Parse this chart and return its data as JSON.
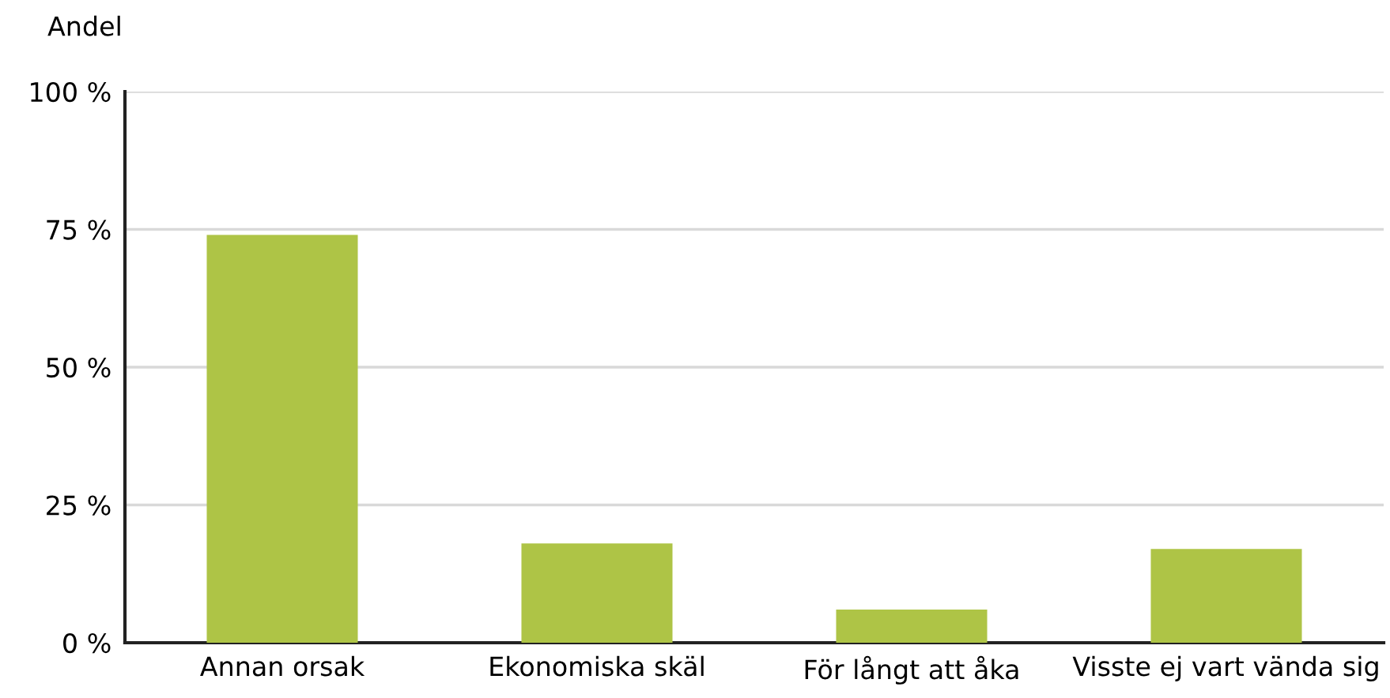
{
  "chart_data": {
    "type": "bar",
    "ylabel": "Andel",
    "categories": [
      "Annan orsak",
      "Ekonomiska skäl",
      "För långt att åka",
      "Visste ej vart vända sig"
    ],
    "values": [
      74,
      18,
      6,
      17
    ],
    "color": "#aec446",
    "ylim": [
      0,
      100
    ],
    "yticks": [
      {
        "value": 0,
        "label": "0 %"
      },
      {
        "value": 25,
        "label": "25 %"
      },
      {
        "value": 50,
        "label": "50 %"
      },
      {
        "value": 75,
        "label": "75 %"
      },
      {
        "value": 100,
        "label": "100 %"
      }
    ],
    "grid": "y"
  }
}
